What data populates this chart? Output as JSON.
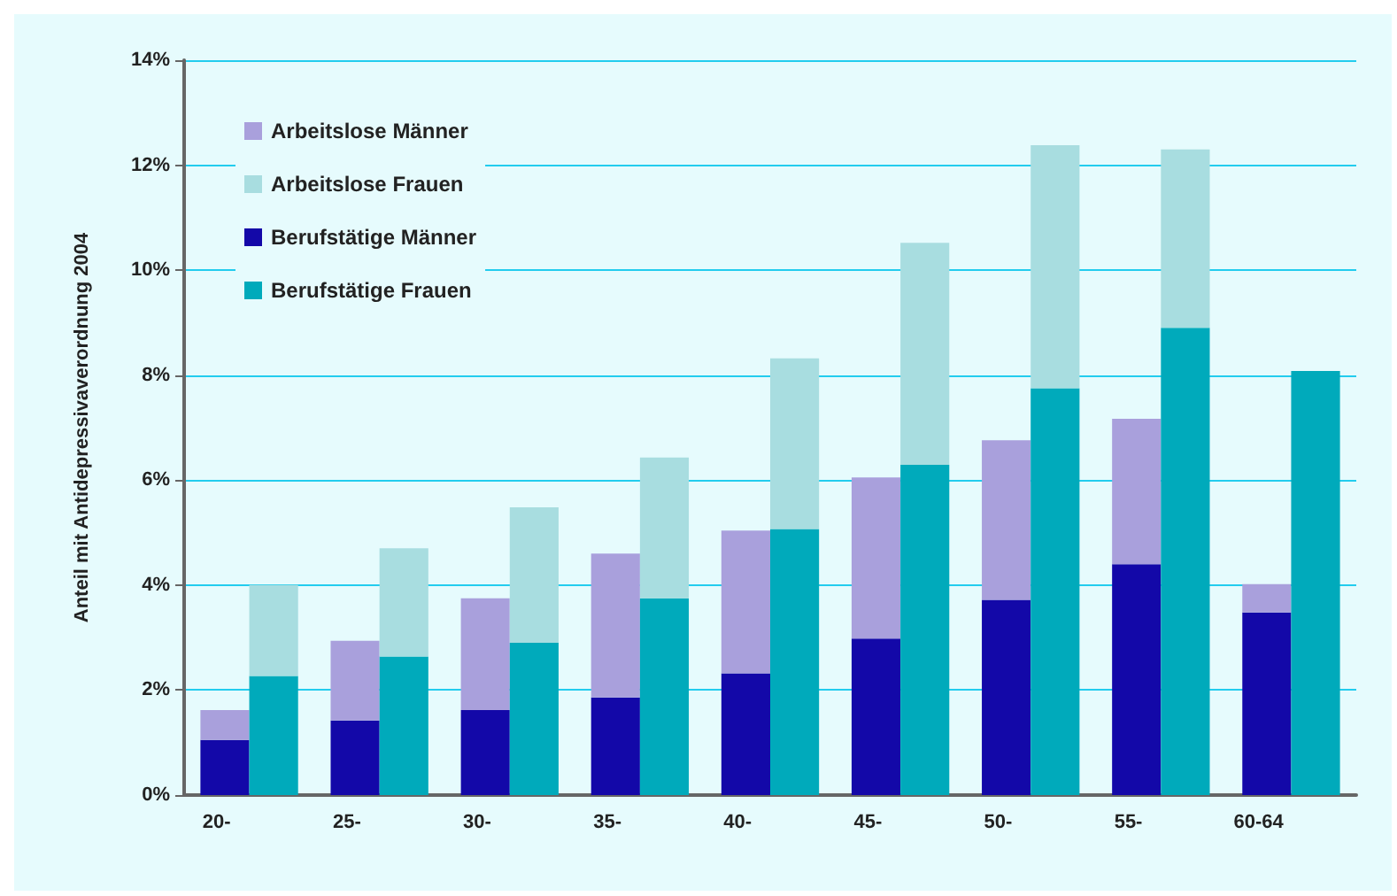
{
  "chart_data": {
    "type": "bar",
    "stacked": true,
    "ylabel": "Anteil mit Antidepressivaverordnung 2004",
    "categories": [
      "20-",
      null,
      "25-",
      null,
      "30-",
      null,
      "35-",
      null,
      "40-",
      null,
      "45-",
      null,
      "50-",
      null,
      "55-",
      null,
      "60-64",
      null
    ],
    "series": [
      {
        "name": "Berufstätige Männer",
        "color": "#1308a8",
        "values": [
          1.05,
          null,
          1.42,
          null,
          1.62,
          null,
          1.86,
          null,
          2.32,
          null,
          2.98,
          null,
          3.72,
          null,
          4.4,
          null,
          3.48,
          null
        ]
      },
      {
        "name": "Arbeitslose Männer",
        "color": "#a9a0dc",
        "values": [
          0.57,
          null,
          1.52,
          null,
          2.13,
          null,
          2.74,
          null,
          2.72,
          null,
          3.07,
          null,
          3.04,
          null,
          2.77,
          null,
          0.54,
          null
        ]
      },
      {
        "name": "Berufstätige Frauen",
        "color": "#00aabb",
        "values": [
          null,
          2.27,
          null,
          2.64,
          null,
          2.9,
          null,
          3.75,
          null,
          5.07,
          null,
          6.29,
          null,
          7.75,
          null,
          8.9,
          null,
          8.08
        ]
      },
      {
        "name": "Arbeitslose Frauen",
        "color": "#a8dde0",
        "values": [
          null,
          1.73,
          null,
          2.06,
          null,
          2.58,
          null,
          2.68,
          null,
          3.25,
          null,
          4.23,
          null,
          4.63,
          null,
          3.4,
          null,
          0
        ]
      }
    ],
    "ylim": [
      0,
      14
    ],
    "yticks": [
      {
        "value": 0,
        "label": "0%"
      },
      {
        "value": 2,
        "label": "2%"
      },
      {
        "value": 4,
        "label": "4%"
      },
      {
        "value": 6,
        "label": "6%"
      },
      {
        "value": 8,
        "label": "8%"
      },
      {
        "value": 10,
        "label": "10%"
      },
      {
        "value": 12,
        "label": "12%"
      },
      {
        "value": 14,
        "label": "14%"
      }
    ],
    "grid": "y",
    "legend": "top left"
  }
}
